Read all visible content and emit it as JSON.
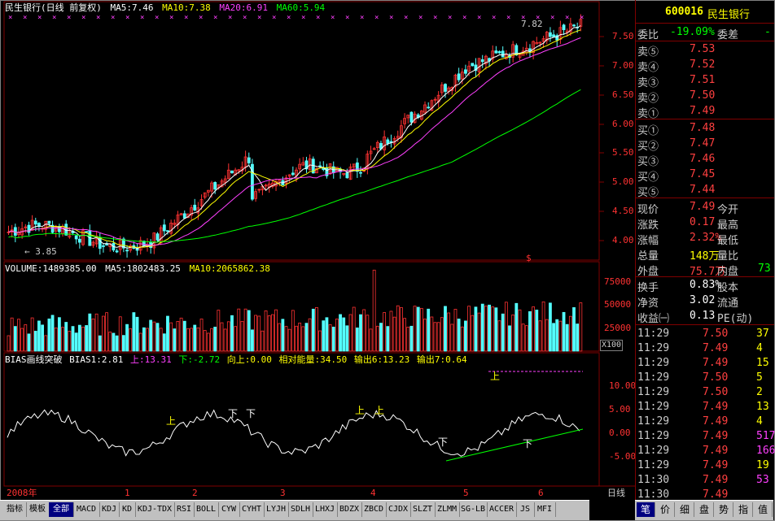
{
  "chart_header": {
    "title": "民生银行(日线 前复权)",
    "ma5": "MA5:7.46",
    "ma10": "MA10:7.38",
    "ma20": "MA20:6.91",
    "ma60": "MA60:5.94",
    "high_label": "7.82",
    "low_label": "← 3.85"
  },
  "price_axis": [
    "7.50",
    "7.00",
    "6.50",
    "6.00",
    "5.50",
    "5.00",
    "4.50",
    "4.00"
  ],
  "volume_header": {
    "volume": "VOLUME:1489385.00",
    "ma5": "MA5:1802483.25",
    "ma10": "MA10:2065862.38"
  },
  "volume_axis": [
    "75000",
    "50000",
    "25000"
  ],
  "volume_unit": "X100",
  "bias_header": {
    "name": "BIAS画线突破",
    "bias1": "BIAS1:2.81",
    "up": "上:13.31",
    "down": "下:-2.72",
    "upward": "向上:0.00",
    "energy": "相对能量:34.50",
    "out6": "输出6:13.23",
    "out7": "输出7:0.64"
  },
  "bias_axis": [
    "10.00",
    "5.00",
    "0.00",
    "-5.00"
  ],
  "bias_marks": {
    "up": "上",
    "down": "下"
  },
  "time_axis": {
    "year": "2008年",
    "months": [
      "1",
      "2",
      "3",
      "4",
      "5",
      "6"
    ],
    "period": "日线"
  },
  "dollar_mark": "$",
  "stock": {
    "code": "600016",
    "name": "民生银行"
  },
  "weibi": {
    "label": "委比",
    "value": "-19.09%",
    "label2": "委差",
    "value2": "-"
  },
  "sell_levels": [
    {
      "label": "卖⑤",
      "price": "7.53"
    },
    {
      "label": "卖④",
      "price": "7.52"
    },
    {
      "label": "卖③",
      "price": "7.51"
    },
    {
      "label": "卖②",
      "price": "7.50"
    },
    {
      "label": "卖①",
      "price": "7.49"
    }
  ],
  "buy_levels": [
    {
      "label": "买①",
      "price": "7.48"
    },
    {
      "label": "买②",
      "price": "7.47"
    },
    {
      "label": "买③",
      "price": "7.46"
    },
    {
      "label": "买④",
      "price": "7.45"
    },
    {
      "label": "买⑤",
      "price": "7.44"
    }
  ],
  "quote": [
    {
      "l1": "现价",
      "v1": "7.49",
      "l2": "今开",
      "c1": "#ff4040"
    },
    {
      "l1": "涨跌",
      "v1": "0.17",
      "l2": "最高",
      "c1": "#ff4040"
    },
    {
      "l1": "涨幅",
      "v1": "2.32%",
      "l2": "最低",
      "c1": "#ff4040"
    },
    {
      "l1": "总量",
      "v1": "148万",
      "l2": "量比",
      "c1": "#ffff00"
    },
    {
      "l1": "外盘",
      "v1": "75.7万",
      "l2": "内盘",
      "v2": "73",
      "c1": "#ff4040",
      "c2": "#00ff00"
    }
  ],
  "finance": [
    {
      "l1": "换手",
      "v1": "0.83%",
      "l2": "股本"
    },
    {
      "l1": "净资",
      "v1": "3.02",
      "l2": "流通"
    },
    {
      "l1": "收益㈠",
      "v1": "0.13",
      "l2": "PE(动)"
    }
  ],
  "ticks": [
    {
      "time": "11:29",
      "price": "7.50",
      "vol": "37",
      "pc": "#ff4040",
      "vc": "#ffff00"
    },
    {
      "time": "11:29",
      "price": "7.49",
      "vol": "4",
      "pc": "#ff4040",
      "vc": "#ffff00"
    },
    {
      "time": "11:29",
      "price": "7.49",
      "vol": "15",
      "pc": "#ff4040",
      "vc": "#ffff00"
    },
    {
      "time": "11:29",
      "price": "7.50",
      "vol": "5",
      "pc": "#ff4040",
      "vc": "#ffff00"
    },
    {
      "time": "11:29",
      "price": "7.50",
      "vol": "2",
      "pc": "#ff4040",
      "vc": "#ffff00"
    },
    {
      "time": "11:29",
      "price": "7.49",
      "vol": "13",
      "pc": "#ff4040",
      "vc": "#ffff00"
    },
    {
      "time": "11:29",
      "price": "7.49",
      "vol": "4",
      "pc": "#ff4040",
      "vc": "#ffff00"
    },
    {
      "time": "11:29",
      "price": "7.49",
      "vol": "517",
      "pc": "#ff4040",
      "vc": "#ff40ff"
    },
    {
      "time": "11:29",
      "price": "7.49",
      "vol": "166",
      "pc": "#ff4040",
      "vc": "#ff40ff"
    },
    {
      "time": "11:29",
      "price": "7.49",
      "vol": "19",
      "pc": "#ff4040",
      "vc": "#ffff00"
    },
    {
      "time": "11:30",
      "price": "7.49",
      "vol": "53",
      "pc": "#ff4040",
      "vc": "#ff40ff"
    },
    {
      "time": "11:30",
      "price": "7.49",
      "vol": "",
      "pc": "#ff4040",
      "vc": "#ffff00"
    }
  ],
  "bottom_tabs": [
    "指标",
    "模板",
    "全部",
    "MACD",
    "KDJ",
    "KD",
    "KDJ-TDX",
    "RSI",
    "BOLL",
    "CYW",
    "CYHT",
    "LYJH",
    "SDLH",
    "LHXJ",
    "BDZX",
    "ZBCD",
    "CJDX",
    "SLZT",
    "ZLMM",
    "SG-LB",
    "ACCER",
    "JS",
    "MFI"
  ],
  "right_tabs": [
    "笔",
    "价",
    "细",
    "盘",
    "势",
    "指",
    "值"
  ],
  "colors": {
    "up": "#ff3232",
    "down": "#54ffff",
    "ma5": "#ffffff",
    "ma10": "#ffff00",
    "ma20": "#ff40ff",
    "ma60": "#00ff00",
    "grid": "#800000"
  }
}
